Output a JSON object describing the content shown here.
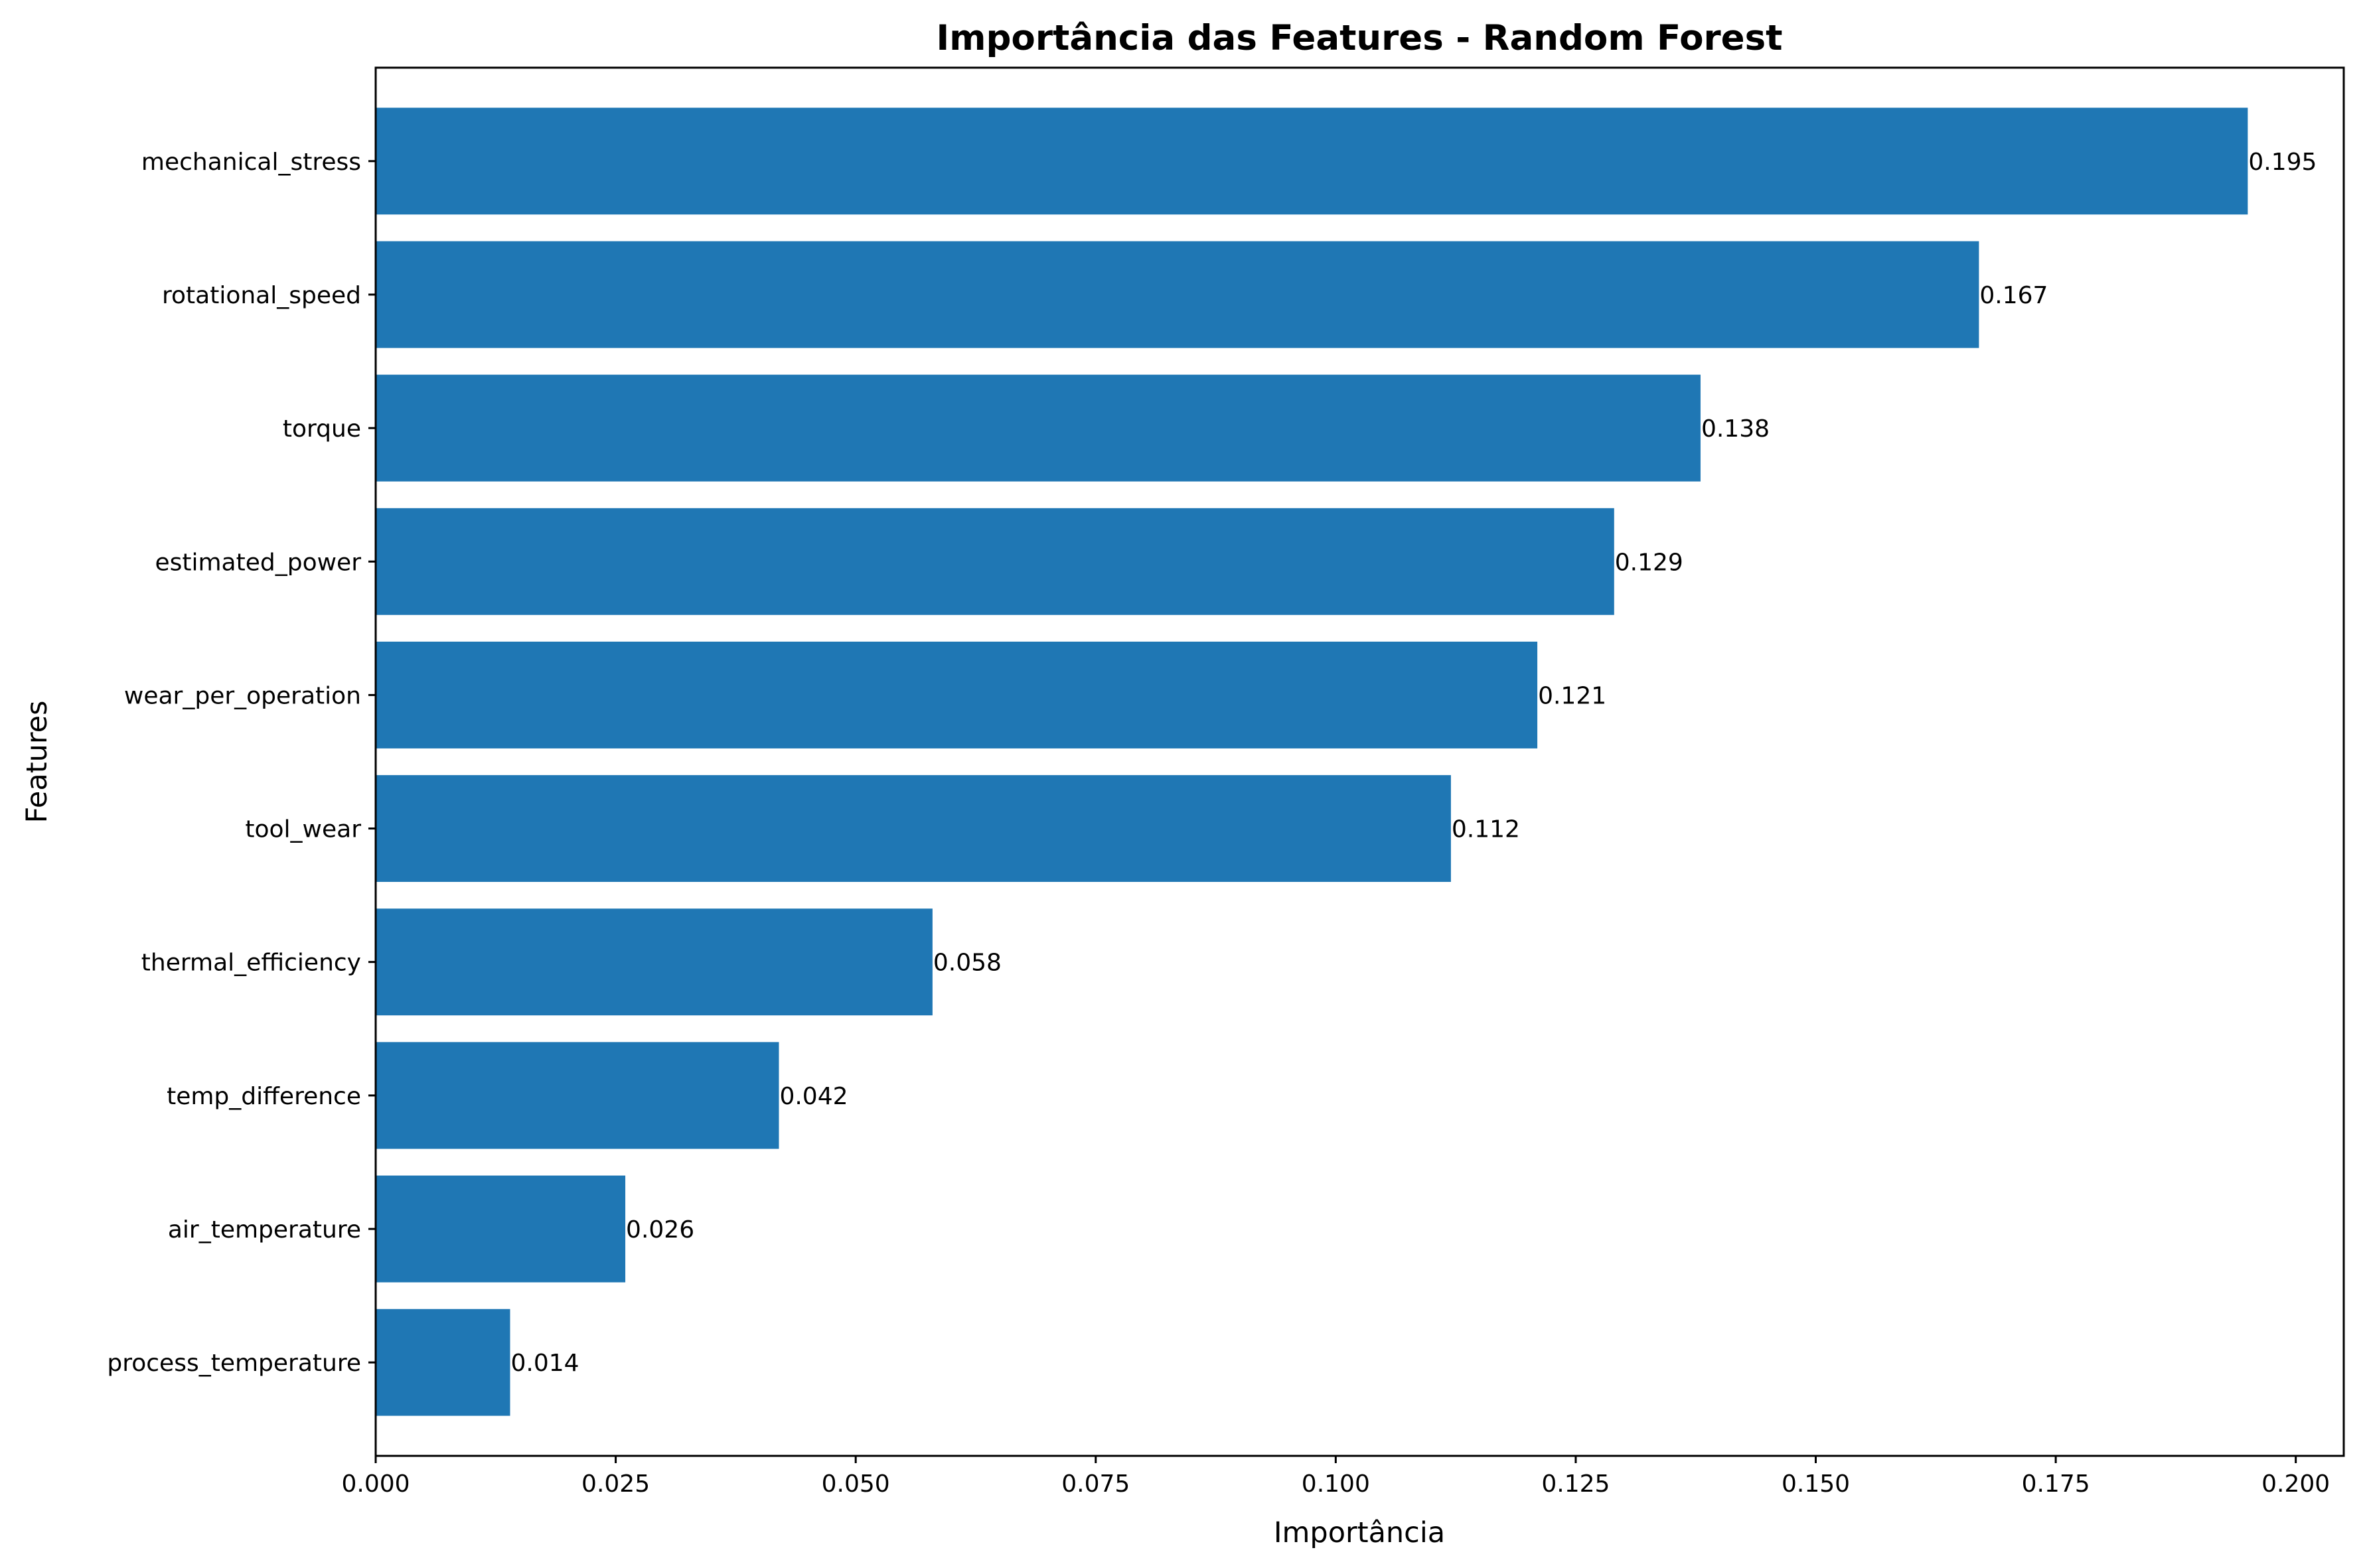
{
  "chart_data": {
    "type": "bar",
    "orientation": "horizontal",
    "title": "Importância das Features - Random Forest",
    "xlabel": "Importância",
    "ylabel": "Features",
    "categories": [
      "mechanical_stress",
      "rotational_speed",
      "torque",
      "estimated_power",
      "wear_per_operation",
      "tool_wear",
      "thermal_efficiency",
      "temp_difference",
      "air_temperature",
      "process_temperature"
    ],
    "values": [
      0.195,
      0.167,
      0.138,
      0.129,
      0.121,
      0.112,
      0.058,
      0.042,
      0.026,
      0.014
    ],
    "value_labels": [
      "0.195",
      "0.167",
      "0.138",
      "0.129",
      "0.121",
      "0.112",
      "0.058",
      "0.042",
      "0.026",
      "0.014"
    ],
    "xlim": [
      0,
      0.205
    ],
    "xticks": [
      0.0,
      0.025,
      0.05,
      0.075,
      0.1,
      0.125,
      0.15,
      0.175,
      0.2
    ],
    "xtick_labels": [
      "0.000",
      "0.025",
      "0.050",
      "0.075",
      "0.100",
      "0.125",
      "0.150",
      "0.175",
      "0.200"
    ],
    "grid": false,
    "bar_color": "#1f77b4"
  }
}
